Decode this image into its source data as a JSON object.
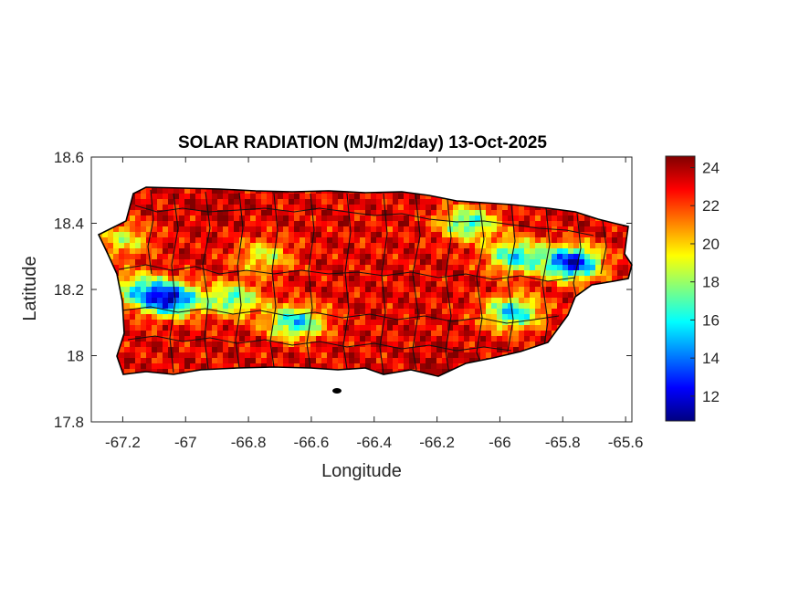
{
  "chart_data": {
    "type": "heatmap",
    "title": "SOLAR RADIATION (MJ/m2/day) 13-Oct-2025",
    "xlabel": "Longitude",
    "ylabel": "Latitude",
    "xlim": [
      -67.3,
      -65.58
    ],
    "ylim": [
      17.8,
      18.6
    ],
    "x_ticks": [
      -67.2,
      -67,
      -66.8,
      -66.6,
      -66.4,
      -66.2,
      -66,
      -65.8,
      -65.6
    ],
    "x_tick_labels": [
      "-67.2",
      "-67",
      "-66.8",
      "-66.6",
      "-66.4",
      "-66.2",
      "-66",
      "-65.8",
      "-65.6"
    ],
    "y_ticks": [
      17.8,
      18,
      18.2,
      18.4,
      18.6
    ],
    "y_tick_labels": [
      "17.8",
      "18",
      "18.2",
      "18.4",
      "18.6"
    ],
    "colorbar": {
      "colormap": "jet",
      "clim": [
        10.7,
        24.6
      ],
      "ticks": [
        12,
        14,
        16,
        18,
        20,
        22,
        24
      ],
      "tick_labels": [
        "12",
        "14",
        "16",
        "18",
        "20",
        "22",
        "24"
      ]
    },
    "field_features": [
      {
        "lon": -67.15,
        "lat": 18.2,
        "value": 17.5
      },
      {
        "lon": -67.05,
        "lat": 18.17,
        "value": 12.5
      },
      {
        "lon": -66.85,
        "lat": 18.17,
        "value": 17
      },
      {
        "lon": -66.65,
        "lat": 18.1,
        "value": 15.5
      },
      {
        "lon": -66.75,
        "lat": 18.3,
        "value": 19
      },
      {
        "lon": -66.4,
        "lat": 18.35,
        "value": 23
      },
      {
        "lon": -66.1,
        "lat": 18.4,
        "value": 16.5
      },
      {
        "lon": -65.95,
        "lat": 18.3,
        "value": 16
      },
      {
        "lon": -65.77,
        "lat": 18.28,
        "value": 12
      },
      {
        "lon": -65.96,
        "lat": 18.13,
        "value": 15.5
      },
      {
        "lon": -66.9,
        "lat": 18.45,
        "value": 24
      },
      {
        "lon": -66.2,
        "lat": 17.98,
        "value": 24
      },
      {
        "lon": -67.2,
        "lat": 18.35,
        "value": 19
      }
    ]
  }
}
